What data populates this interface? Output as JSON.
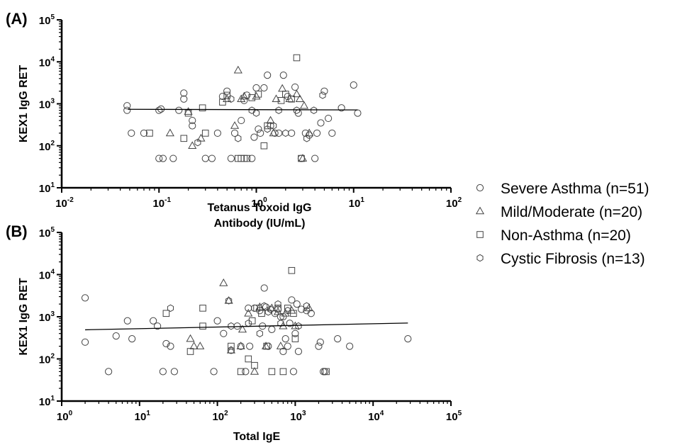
{
  "legend": [
    {
      "name": "Severe Asthma (n=51)",
      "marker": "circle"
    },
    {
      "name": "Mild/Moderate (n=20)",
      "marker": "triangle"
    },
    {
      "name": "Non-Asthma (n=20)",
      "marker": "square"
    },
    {
      "name": "Cystic Fibrosis (n=13)",
      "marker": "hexagon"
    }
  ],
  "chart_data": [
    {
      "type": "scatter",
      "panel_label": "(A)",
      "xlabel": [
        "Tetanus Toxoid IgG",
        "Antibody (IU/mL)"
      ],
      "ylabel": "KEX1 IgG RET",
      "x_scale": "log",
      "y_scale": "log",
      "xlim": [
        0.01,
        100
      ],
      "ylim": [
        10,
        100000
      ],
      "x_ticks": [
        {
          "base": "10",
          "exp": "-2"
        },
        {
          "base": "10",
          "exp": "-1"
        },
        {
          "base": "10",
          "exp": "0"
        },
        {
          "base": "10",
          "exp": "1"
        },
        {
          "base": "10",
          "exp": "2"
        }
      ],
      "y_ticks": [
        {
          "base": "10",
          "exp": "1"
        },
        {
          "base": "10",
          "exp": "2"
        },
        {
          "base": "10",
          "exp": "3"
        },
        {
          "base": "10",
          "exp": "4"
        },
        {
          "base": "10",
          "exp": "5"
        }
      ],
      "trend_line": {
        "x": [
          0.048,
          11
        ],
        "y": [
          740,
          715
        ]
      },
      "series": [
        {
          "name": "Severe Asthma (n=51)",
          "marker": "circle",
          "points": [
            [
              0.047,
              900
            ],
            [
              0.047,
              700
            ],
            [
              0.052,
              200
            ],
            [
              0.07,
              200
            ],
            [
              0.1,
              50
            ],
            [
              0.11,
              50
            ],
            [
              0.14,
              50
            ],
            [
              0.1,
              700
            ],
            [
              0.105,
              750
            ],
            [
              0.16,
              700
            ],
            [
              0.18,
              1300
            ],
            [
              0.18,
              1800
            ],
            [
              0.22,
              300
            ],
            [
              0.22,
              400
            ],
            [
              0.3,
              50
            ],
            [
              0.35,
              50
            ],
            [
              0.4,
              200
            ],
            [
              0.45,
              1500
            ],
            [
              0.5,
              2000
            ],
            [
              0.55,
              50
            ],
            [
              0.6,
              200
            ],
            [
              0.7,
              400
            ],
            [
              0.75,
              1200
            ],
            [
              0.8,
              1600
            ],
            [
              0.9,
              50
            ],
            [
              0.95,
              160
            ],
            [
              1.0,
              2400
            ],
            [
              1.05,
              250
            ],
            [
              1.1,
              200
            ],
            [
              1.2,
              2400
            ],
            [
              1.3,
              4800
            ],
            [
              1.4,
              300
            ],
            [
              1.55,
              200
            ],
            [
              1.7,
              200
            ],
            [
              1.9,
              4800
            ],
            [
              2.1,
              1500
            ],
            [
              2.3,
              200
            ],
            [
              2.5,
              2500
            ],
            [
              2.7,
              600
            ],
            [
              2.9,
              50
            ],
            [
              3.2,
              200
            ],
            [
              3.5,
              180
            ],
            [
              4.0,
              50
            ],
            [
              4.2,
              200
            ],
            [
              4.6,
              350
            ],
            [
              5.0,
              2000
            ],
            [
              5.5,
              450
            ],
            [
              6.0,
              200
            ],
            [
              7.5,
              800
            ],
            [
              10.0,
              2800
            ],
            [
              11.0,
              600
            ]
          ]
        },
        {
          "name": "Mild/Moderate (n=20)",
          "marker": "triangle",
          "points": [
            [
              0.13,
              200
            ],
            [
              0.2,
              650
            ],
            [
              0.22,
              100
            ],
            [
              0.27,
              150
            ],
            [
              0.5,
              1300
            ],
            [
              0.6,
              300
            ],
            [
              0.65,
              6300
            ],
            [
              0.7,
              1300
            ],
            [
              0.75,
              1500
            ],
            [
              1.0,
              1500
            ],
            [
              1.4,
              400
            ],
            [
              1.5,
              200
            ],
            [
              1.6,
              1300
            ],
            [
              1.85,
              2300
            ],
            [
              2.2,
              1300
            ],
            [
              2.6,
              1700
            ],
            [
              2.8,
              1300
            ],
            [
              3.0,
              50
            ],
            [
              3.1,
              900
            ],
            [
              3.5,
              200
            ]
          ]
        },
        {
          "name": "Non-Asthma (n=20)",
          "marker": "square",
          "points": [
            [
              0.08,
              200
            ],
            [
              0.18,
              150
            ],
            [
              0.2,
              600
            ],
            [
              0.28,
              800
            ],
            [
              0.3,
              200
            ],
            [
              0.45,
              1100
            ],
            [
              0.5,
              1600
            ],
            [
              0.65,
              50
            ],
            [
              0.7,
              50
            ],
            [
              0.75,
              50
            ],
            [
              0.8,
              50
            ],
            [
              0.9,
              1400
            ],
            [
              1.05,
              1700
            ],
            [
              1.2,
              100
            ],
            [
              1.3,
              300
            ],
            [
              1.8,
              1200
            ],
            [
              2.0,
              1700
            ],
            [
              2.3,
              1300
            ],
            [
              2.6,
              12500
            ],
            [
              2.9,
              50
            ]
          ]
        },
        {
          "name": "Cystic Fibrosis (n=13)",
          "marker": "hexagon",
          "points": [
            [
              0.25,
              120
            ],
            [
              0.55,
              1300
            ],
            [
              0.65,
              150
            ],
            [
              0.9,
              700
            ],
            [
              1.0,
              600
            ],
            [
              1.3,
              250
            ],
            [
              1.5,
              300
            ],
            [
              1.7,
              700
            ],
            [
              2.0,
              200
            ],
            [
              2.6,
              700
            ],
            [
              3.3,
              150
            ],
            [
              3.9,
              700
            ],
            [
              4.8,
              1600
            ]
          ]
        }
      ]
    },
    {
      "type": "scatter",
      "panel_label": "(B)",
      "xlabel": [
        "Total IgE"
      ],
      "ylabel": "KEX1 IgG RET",
      "x_scale": "log",
      "y_scale": "log",
      "xlim": [
        1,
        100000
      ],
      "ylim": [
        10,
        100000
      ],
      "x_ticks": [
        {
          "base": "10",
          "exp": "0"
        },
        {
          "base": "10",
          "exp": "1"
        },
        {
          "base": "10",
          "exp": "2"
        },
        {
          "base": "10",
          "exp": "3"
        },
        {
          "base": "10",
          "exp": "4"
        },
        {
          "base": "10",
          "exp": "5"
        }
      ],
      "y_ticks": [
        {
          "base": "10",
          "exp": "1"
        },
        {
          "base": "10",
          "exp": "2"
        },
        {
          "base": "10",
          "exp": "3"
        },
        {
          "base": "10",
          "exp": "4"
        },
        {
          "base": "10",
          "exp": "5"
        }
      ],
      "trend_line": {
        "x": [
          2,
          28000
        ],
        "y": [
          490,
          710
        ]
      },
      "series": [
        {
          "name": "Severe Asthma (n=51)",
          "marker": "circle",
          "points": [
            [
              2,
              2800
            ],
            [
              2,
              250
            ],
            [
              4,
              50
            ],
            [
              5,
              350
            ],
            [
              7,
              800
            ],
            [
              8,
              300
            ],
            [
              15,
              800
            ],
            [
              17,
              600
            ],
            [
              20,
              50
            ],
            [
              22,
              230
            ],
            [
              25,
              200
            ],
            [
              28,
              50
            ],
            [
              90,
              50
            ],
            [
              100,
              800
            ],
            [
              120,
              400
            ],
            [
              150,
              160
            ],
            [
              180,
              600
            ],
            [
              200,
              200
            ],
            [
              230,
              50
            ],
            [
              260,
              200
            ],
            [
              300,
              1600
            ],
            [
              350,
              1400
            ],
            [
              380,
              600
            ],
            [
              400,
              4800
            ],
            [
              420,
              1700
            ],
            [
              450,
              200
            ],
            [
              500,
              500
            ],
            [
              550,
              1200
            ],
            [
              600,
              1500
            ],
            [
              650,
              1000
            ],
            [
              700,
              150
            ],
            [
              750,
              300
            ],
            [
              800,
              200
            ],
            [
              850,
              700
            ],
            [
              900,
              2500
            ],
            [
              950,
              50
            ],
            [
              1000,
              400
            ],
            [
              1050,
              2000
            ],
            [
              1100,
              150
            ],
            [
              1200,
              1500
            ],
            [
              1400,
              1400
            ],
            [
              1600,
              1200
            ],
            [
              2000,
              200
            ],
            [
              2100,
              250
            ],
            [
              2300,
              50
            ],
            [
              2400,
              50
            ],
            [
              3500,
              300
            ],
            [
              5000,
              200
            ],
            [
              28000,
              300
            ],
            [
              700,
              1000
            ],
            [
              250,
              1600
            ]
          ]
        },
        {
          "name": "Mild/Moderate (n=20)",
          "marker": "triangle",
          "points": [
            [
              45,
              300
            ],
            [
              50,
              200
            ],
            [
              60,
              200
            ],
            [
              120,
              6300
            ],
            [
              140,
              2400
            ],
            [
              150,
              160
            ],
            [
              200,
              200
            ],
            [
              210,
              500
            ],
            [
              300,
              50
            ],
            [
              350,
              1700
            ],
            [
              420,
              200
            ],
            [
              500,
              1600
            ],
            [
              600,
              1300
            ],
            [
              650,
              200
            ],
            [
              700,
              600
            ],
            [
              750,
              1200
            ],
            [
              900,
              1400
            ],
            [
              1000,
              600
            ],
            [
              1500,
              1600
            ],
            [
              250,
              1200
            ]
          ]
        },
        {
          "name": "Non-Asthma (n=20)",
          "marker": "square",
          "points": [
            [
              22,
              1200
            ],
            [
              45,
              150
            ],
            [
              65,
              1600
            ],
            [
              65,
              600
            ],
            [
              150,
              200
            ],
            [
              200,
              50
            ],
            [
              250,
              100
            ],
            [
              280,
              800
            ],
            [
              300,
              70
            ],
            [
              320,
              1600
            ],
            [
              370,
              1200
            ],
            [
              430,
              200
            ],
            [
              500,
              50
            ],
            [
              600,
              1600
            ],
            [
              700,
              50
            ],
            [
              800,
              1600
            ],
            [
              900,
              12500
            ],
            [
              950,
              1200
            ],
            [
              1000,
              300
            ],
            [
              2500,
              50
            ]
          ]
        },
        {
          "name": "Cystic Fibrosis (n=13)",
          "marker": "hexagon",
          "points": [
            [
              25,
              1600
            ],
            [
              140,
              2400
            ],
            [
              150,
              600
            ],
            [
              250,
              700
            ],
            [
              350,
              400
            ],
            [
              400,
              1800
            ],
            [
              450,
              1300
            ],
            [
              480,
              1500
            ],
            [
              600,
              2000
            ],
            [
              650,
              700
            ],
            [
              800,
              1400
            ],
            [
              1100,
              600
            ],
            [
              1400,
              1800
            ]
          ]
        }
      ]
    }
  ]
}
